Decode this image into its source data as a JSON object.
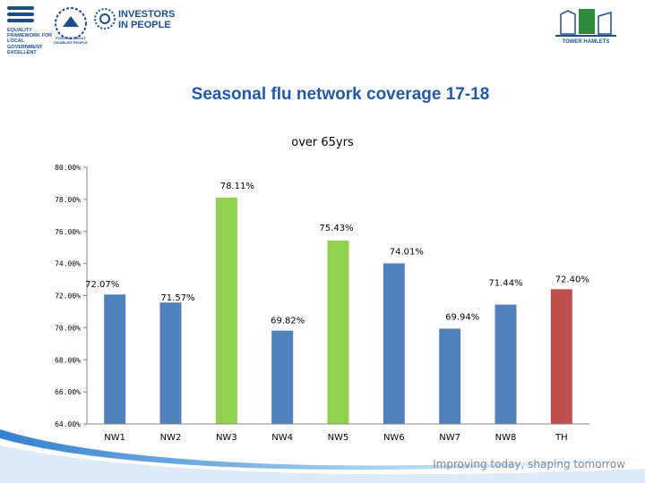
{
  "header": {
    "equality_logo_text": "EQUALITY FRAMEWORK FOR LOCAL GOVERNMENT EXCELLENT",
    "positive_logo_text": "POSITIVE ABOUT DISABLED PEOPLE",
    "iip_logo_text": "INVESTORS IN PEOPLE",
    "tower_hamlets_logo_text": "TOWER HAMLETS"
  },
  "slide_title": "Seasonal flu network coverage 17-18",
  "footer_text": "Improving today, shaping tomorrow",
  "colors": {
    "blue": "#4f81bd",
    "green": "#92d050",
    "red": "#c0504d",
    "title": "#1f5aa6"
  },
  "chart_data": {
    "type": "bar",
    "title": "over 65yrs",
    "categories": [
      "NW1",
      "NW2",
      "NW3",
      "NW4",
      "NW5",
      "NW6",
      "NW7",
      "NW8",
      "TH"
    ],
    "values": [
      72.07,
      71.57,
      78.11,
      69.82,
      75.43,
      74.01,
      69.94,
      71.44,
      72.4
    ],
    "data_labels": [
      "72.07%",
      "71.57%",
      "78.11%",
      "69.82%",
      "75.43%",
      "74.01%",
      "69.94%",
      "71.44%",
      "72.40%"
    ],
    "bar_colors": [
      "#4f81bd",
      "#4f81bd",
      "#92d050",
      "#4f81bd",
      "#92d050",
      "#4f81bd",
      "#4f81bd",
      "#4f81bd",
      "#c0504d"
    ],
    "yticks": [
      "64.00%",
      "66.00%",
      "68.00%",
      "70.00%",
      "72.00%",
      "74.00%",
      "76.00%",
      "78.00%",
      "80.00%"
    ],
    "ylim": [
      64,
      80
    ],
    "xlabel": "",
    "ylabel": "",
    "grid": false,
    "legend": "none"
  }
}
